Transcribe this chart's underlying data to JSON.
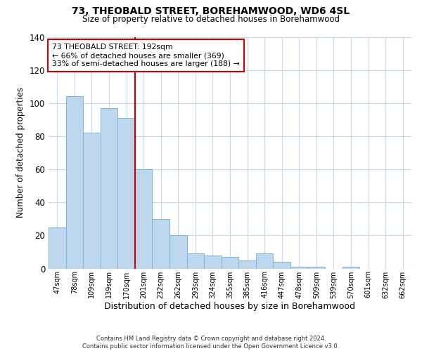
{
  "title": "73, THEOBALD STREET, BOREHAMWOOD, WD6 4SL",
  "subtitle": "Size of property relative to detached houses in Borehamwood",
  "xlabel": "Distribution of detached houses by size in Borehamwood",
  "ylabel": "Number of detached properties",
  "categories": [
    "47sqm",
    "78sqm",
    "109sqm",
    "139sqm",
    "170sqm",
    "201sqm",
    "232sqm",
    "262sqm",
    "293sqm",
    "324sqm",
    "355sqm",
    "385sqm",
    "416sqm",
    "447sqm",
    "478sqm",
    "509sqm",
    "539sqm",
    "570sqm",
    "601sqm",
    "632sqm",
    "662sqm"
  ],
  "values": [
    25,
    104,
    82,
    97,
    91,
    60,
    30,
    20,
    9,
    8,
    7,
    5,
    9,
    4,
    1,
    1,
    0,
    1,
    0,
    0,
    0
  ],
  "bar_color": "#BDD7EE",
  "bar_edge_color": "#7EB5D6",
  "ylim": [
    0,
    140
  ],
  "yticks": [
    0,
    20,
    40,
    60,
    80,
    100,
    120,
    140
  ],
  "marker_line_color": "#cc0000",
  "annotation_title": "73 THEOBALD STREET: 192sqm",
  "annotation_line1": "← 66% of detached houses are smaller (369)",
  "annotation_line2": "33% of semi-detached houses are larger (188) →",
  "annotation_box_color": "#ffffff",
  "annotation_box_edge": "#cc0000",
  "footer_line1": "Contains HM Land Registry data © Crown copyright and database right 2024.",
  "footer_line2": "Contains public sector information licensed under the Open Government Licence v3.0.",
  "background_color": "#ffffff",
  "grid_color": "#c8d8e8"
}
